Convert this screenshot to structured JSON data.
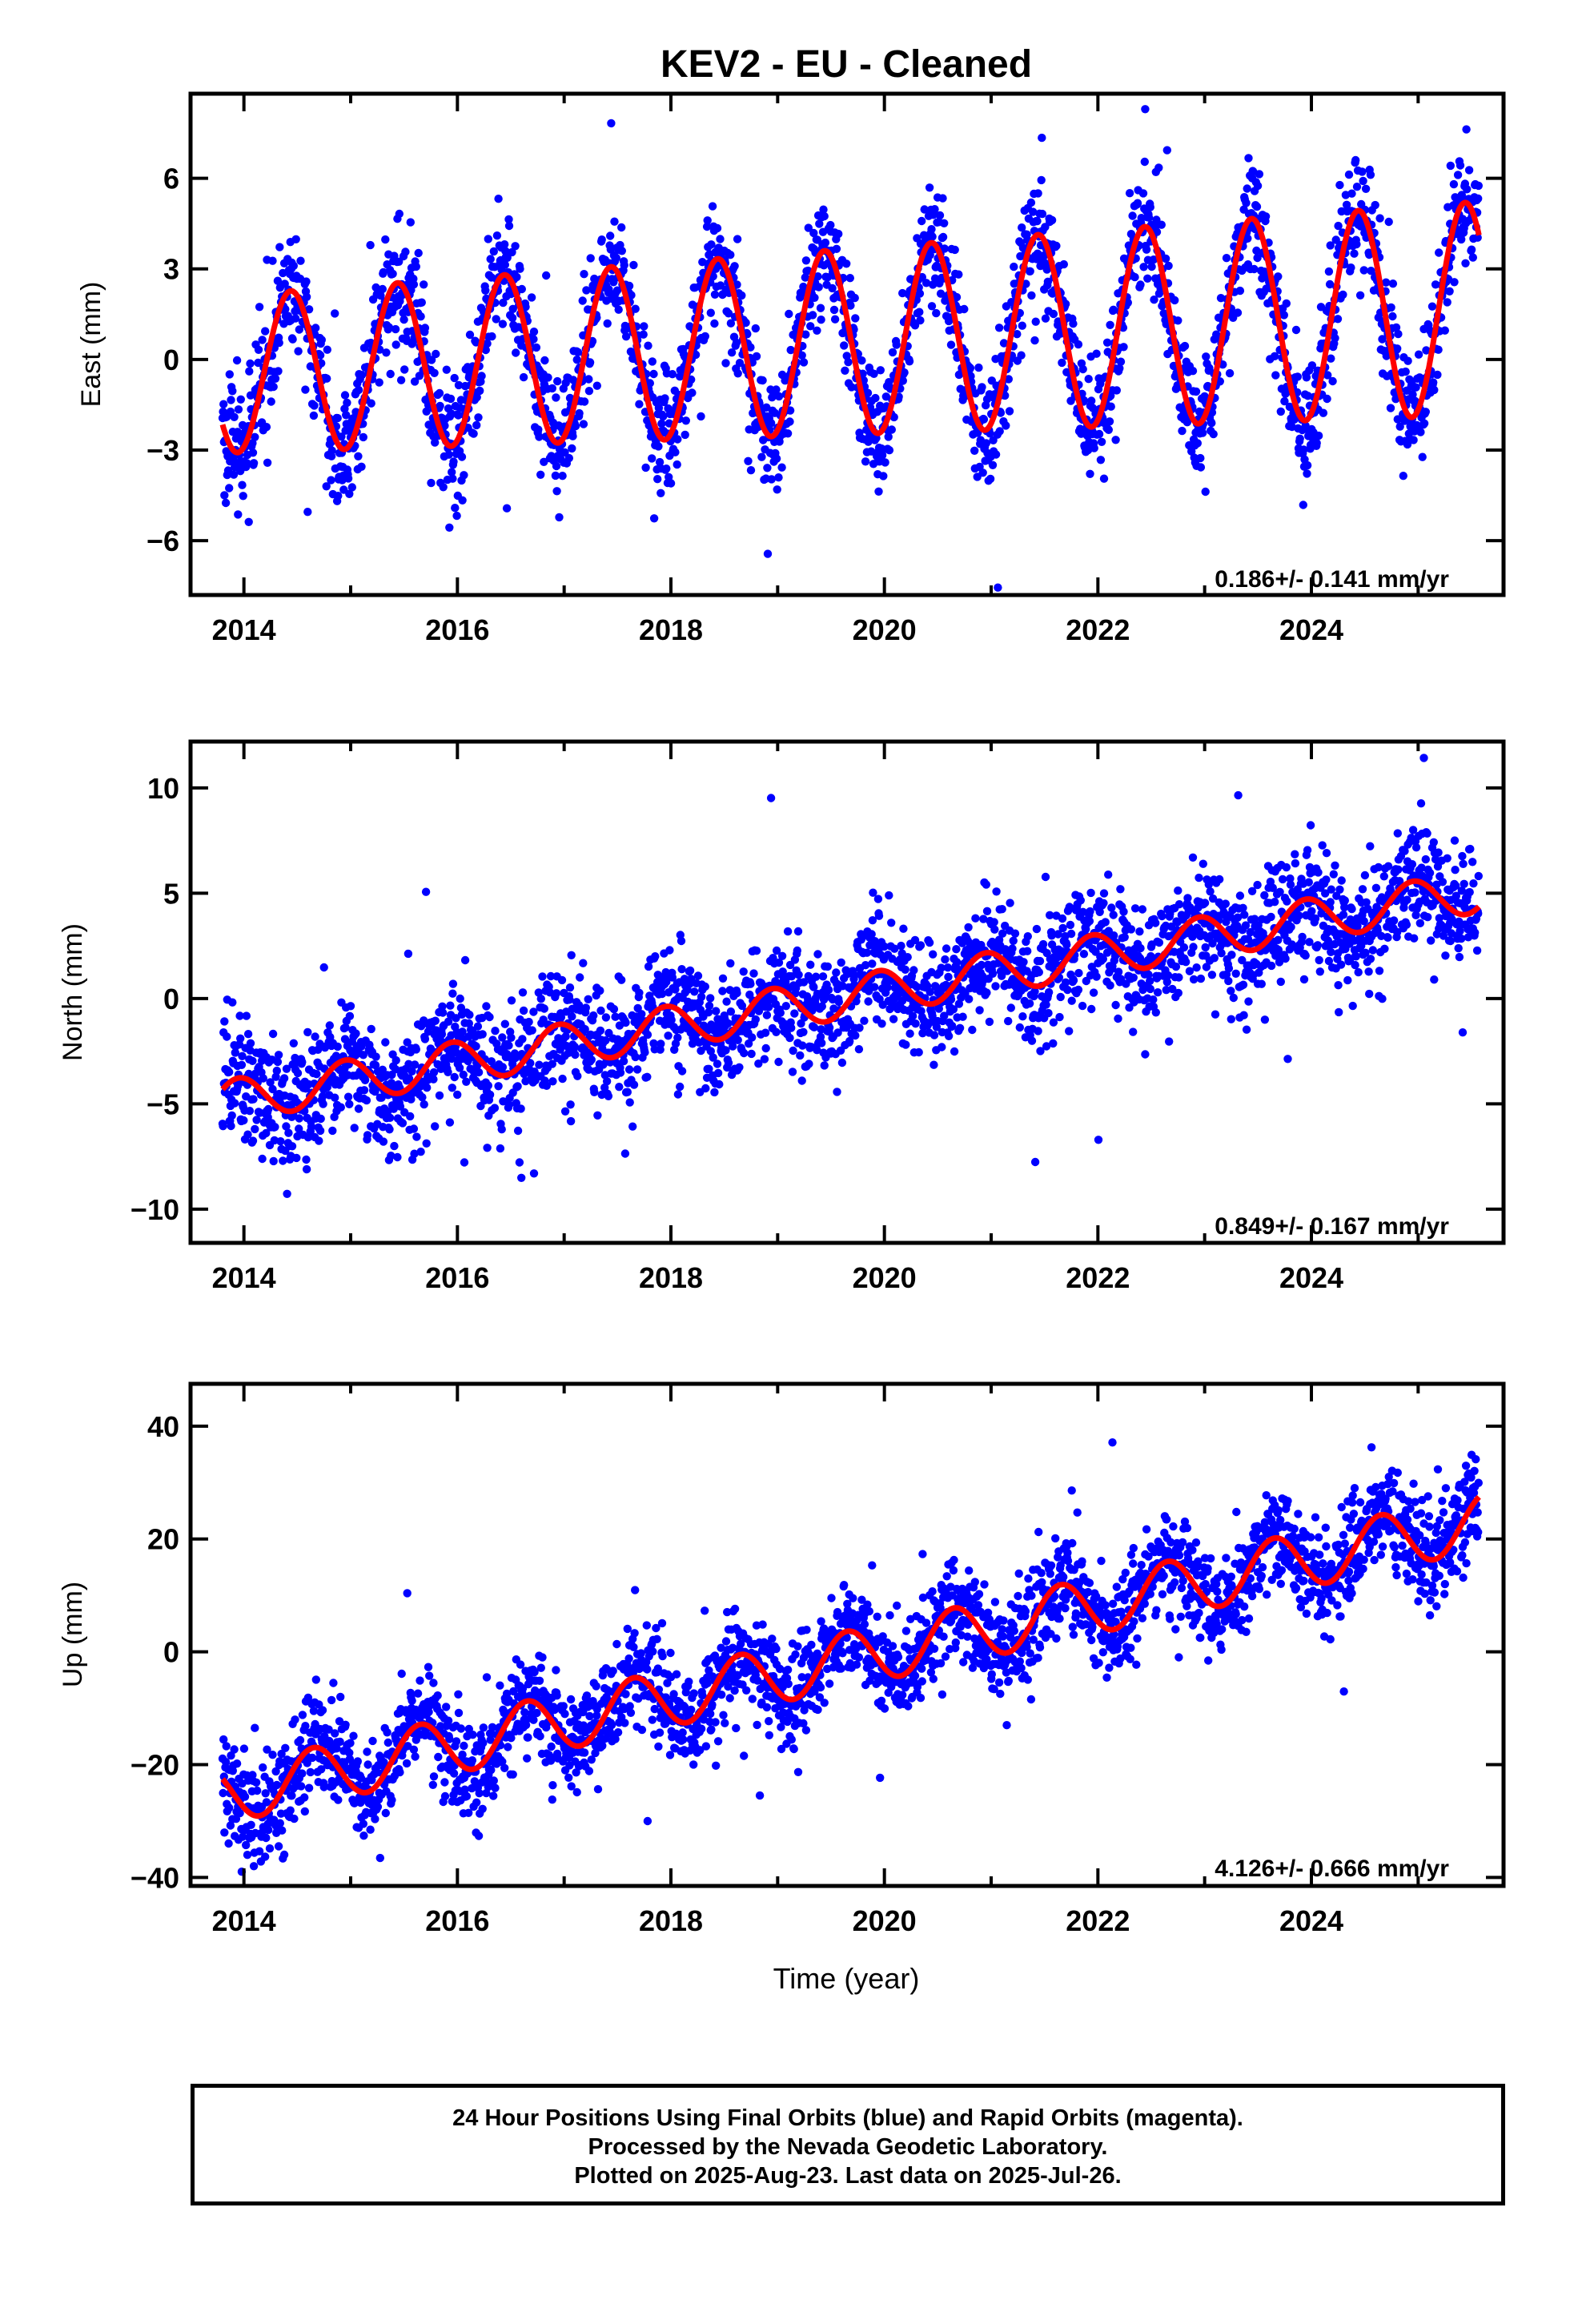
{
  "title": "KEV2  - EU - Cleaned",
  "xlabel": "Time (year)",
  "x_ticks": [
    "2014",
    "2016",
    "2018",
    "2020",
    "2022",
    "2024"
  ],
  "colors": {
    "points": "#0000ff",
    "model": "#ff0000",
    "axes": "#000000"
  },
  "footer": {
    "line1": "24 Hour Positions Using Final Orbits (blue) and Rapid Orbits (magenta).",
    "line2": "Processed by the Nevada Geodetic Laboratory.",
    "line3": "Plotted on 2025-Aug-23. Last data on 2025-Jul-26."
  },
  "chart_data": [
    {
      "type": "scatter",
      "panel": "east",
      "ylabel": "East (mm)",
      "rate": "0.186+/- 0.141 mm/yr",
      "xlim": [
        2013.5,
        2025.8
      ],
      "ylim": [
        -7.8,
        8.8
      ],
      "y_ticks": [
        -6,
        -3,
        0,
        3,
        6
      ],
      "y_tick_labels": [
        "−6",
        "−3",
        "0",
        "3",
        "6"
      ],
      "data_range_x": [
        2013.8,
        2025.57
      ],
      "scatter_spread_mm": 1.0,
      "series": [
        {
          "name": "Final Orbits (blue)",
          "model": {
            "trend_mm_per_yr": 0.186,
            "value_at_start": -0.5,
            "annual_amplitude": 2.6,
            "annual_peak_year_fraction": 0.44,
            "amplitude_growth_per_yr": 0.08
          }
        }
      ]
    },
    {
      "type": "scatter",
      "panel": "north",
      "ylabel": "North (mm)",
      "rate": "0.849+/- 0.167 mm/yr",
      "xlim": [
        2013.5,
        2025.8
      ],
      "ylim": [
        -11.6,
        12.2
      ],
      "y_ticks": [
        -10,
        -5,
        0,
        5,
        10
      ],
      "y_tick_labels": [
        "−10",
        "−5",
        "0",
        "5",
        "10"
      ],
      "data_range_x": [
        2013.8,
        2025.57
      ],
      "scatter_spread_mm": 1.4,
      "series": [
        {
          "name": "Final Orbits (blue)",
          "model": {
            "trend_mm_per_yr": 0.849,
            "value_at_start": -4.9,
            "annual_amplitude": 1.0,
            "annual_peak_year_fraction": 0.95,
            "amplitude_growth_per_yr": 0.0
          }
        }
      ]
    },
    {
      "type": "scatter",
      "panel": "up",
      "ylabel": "Up (mm)",
      "rate": "4.126+/- 0.666 mm/yr",
      "xlim": [
        2013.5,
        2025.8
      ],
      "ylim": [
        -41.5,
        47.5
      ],
      "y_ticks": [
        -40,
        -20,
        0,
        20,
        40
      ],
      "y_tick_labels": [
        "−40",
        "−20",
        "0",
        "20",
        "40"
      ],
      "data_range_x": [
        2013.8,
        2025.57
      ],
      "scatter_spread_mm": 4.5,
      "series": [
        {
          "name": "Final Orbits (blue)",
          "model": {
            "trend_mm_per_yr": 4.126,
            "value_at_start": -25.5,
            "annual_amplitude": 5.0,
            "annual_peak_year_fraction": 0.65,
            "amplitude_growth_per_yr": 0.0
          }
        }
      ]
    }
  ]
}
